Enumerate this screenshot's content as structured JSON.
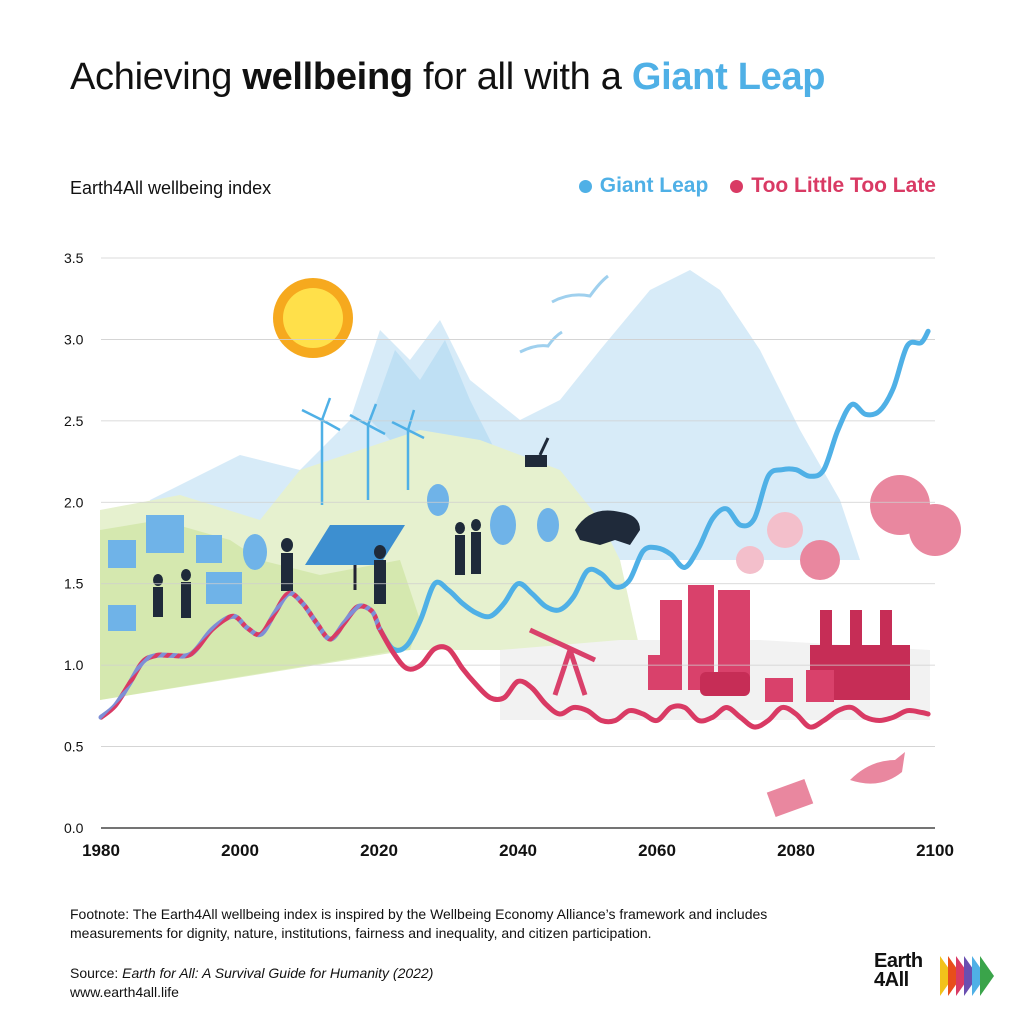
{
  "title": {
    "prefix": "Achieving ",
    "bold": "wellbeing",
    "middle": " for all with a ",
    "highlight": "Giant Leap"
  },
  "chart_data": {
    "type": "line",
    "ylabel": "Earth4All wellbeing index",
    "xlim": [
      1980,
      2100
    ],
    "ylim": [
      0,
      3.5
    ],
    "xticks": [
      1980,
      2000,
      2020,
      2040,
      2060,
      2080,
      2100
    ],
    "yticks": [
      "0.0",
      "0.5",
      "1.0",
      "1.5",
      "2.0",
      "2.5",
      "3.0",
      "3.5"
    ],
    "grid": true,
    "legend_position": "top-right",
    "historical": {
      "x": [
        1980,
        1982,
        1984,
        1986,
        1988,
        1990,
        1993,
        1996,
        1999,
        2001,
        2003,
        2005,
        2007,
        2009,
        2011,
        2013,
        2015,
        2017,
        2019,
        2020
      ],
      "y": [
        0.68,
        0.75,
        0.88,
        1.02,
        1.06,
        1.06,
        1.07,
        1.22,
        1.3,
        1.23,
        1.19,
        1.32,
        1.44,
        1.38,
        1.26,
        1.16,
        1.26,
        1.36,
        1.33,
        1.23
      ]
    },
    "series": [
      {
        "name": "Giant Leap",
        "color": "#4fb0e6",
        "x": [
          2020,
          2022,
          2024,
          2026,
          2028,
          2030,
          2032,
          2034,
          2036,
          2038,
          2040,
          2042,
          2044,
          2046,
          2048,
          2050,
          2052,
          2054,
          2056,
          2058,
          2060,
          2062,
          2064,
          2066,
          2068,
          2070,
          2072,
          2074,
          2076,
          2078,
          2080,
          2082,
          2084,
          2086,
          2088,
          2090,
          2092,
          2094,
          2096,
          2098,
          2099
        ],
        "y": [
          1.23,
          1.1,
          1.12,
          1.28,
          1.5,
          1.46,
          1.38,
          1.32,
          1.3,
          1.38,
          1.5,
          1.44,
          1.36,
          1.34,
          1.42,
          1.58,
          1.56,
          1.48,
          1.52,
          1.7,
          1.72,
          1.68,
          1.6,
          1.72,
          1.9,
          1.96,
          1.86,
          1.9,
          2.16,
          2.2,
          2.2,
          2.16,
          2.2,
          2.44,
          2.6,
          2.54,
          2.56,
          2.7,
          2.96,
          2.98,
          3.05
        ]
      },
      {
        "name": "Too Little Too Late",
        "color": "#d93a64",
        "x": [
          2020,
          2022,
          2024,
          2026,
          2028,
          2030,
          2032,
          2034,
          2036,
          2038,
          2040,
          2042,
          2044,
          2046,
          2048,
          2050,
          2052,
          2054,
          2056,
          2058,
          2060,
          2062,
          2064,
          2066,
          2068,
          2070,
          2072,
          2074,
          2076,
          2078,
          2080,
          2082,
          2084,
          2086,
          2088,
          2090,
          2092,
          2094,
          2096,
          2098,
          2099
        ],
        "y": [
          1.23,
          1.08,
          0.98,
          1.0,
          1.1,
          1.1,
          0.98,
          0.88,
          0.8,
          0.8,
          0.9,
          0.86,
          0.76,
          0.7,
          0.74,
          0.72,
          0.66,
          0.66,
          0.72,
          0.7,
          0.66,
          0.74,
          0.74,
          0.66,
          0.68,
          0.74,
          0.68,
          0.62,
          0.66,
          0.74,
          0.7,
          0.62,
          0.66,
          0.72,
          0.74,
          0.68,
          0.66,
          0.68,
          0.72,
          0.71,
          0.7
        ]
      }
    ]
  },
  "footnote": "Footnote: The Earth4All wellbeing index is inspired by the Wellbeing Economy Alliance’s framework and includes measurements for dignity, nature, institutions, fairness and inequality, and citizen participation.",
  "source": {
    "prefix": "Source: ",
    "italic": "Earth for All: A Survival Guide for Humanity (2022)",
    "url": "www.earth4all.life"
  },
  "logo": {
    "line1": "Earth",
    "line2": "4All"
  }
}
